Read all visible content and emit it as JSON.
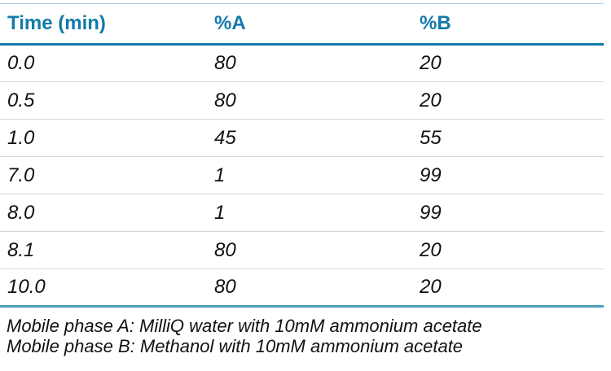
{
  "colors": {
    "accent_teal": "#137AA9",
    "top_rule": "#A9CCDF",
    "bottom_rule": "#4BA0BC",
    "row_rule": "#D6D6D6",
    "text": "#111111"
  },
  "table": {
    "headers": [
      "Time (min)",
      "%A",
      "%B"
    ],
    "rows": [
      [
        "0.0",
        "80",
        "20"
      ],
      [
        "0.5",
        "80",
        "20"
      ],
      [
        "1.0",
        "45",
        "55"
      ],
      [
        "7.0",
        "1",
        "99"
      ],
      [
        "8.0",
        "1",
        "99"
      ],
      [
        "8.1",
        "80",
        "20"
      ],
      [
        "10.0",
        "80",
        "20"
      ]
    ]
  },
  "footnotes": [
    "Mobile phase A: MilliQ water with 10mM ammonium acetate",
    "Mobile phase B: Methanol with 10mM ammonium acetate"
  ]
}
